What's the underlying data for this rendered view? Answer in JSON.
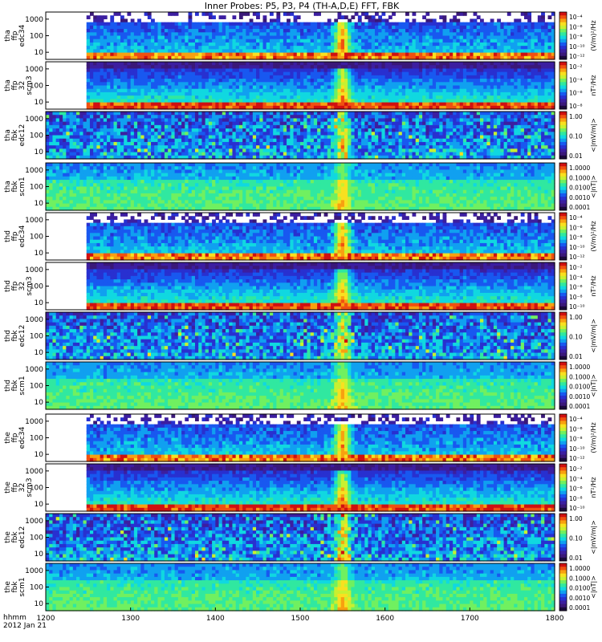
{
  "chart_data": {
    "type": "heatmap",
    "title": "Inner Probes: P5, P3, P4 (TH-A,D,E) FFT, FBK",
    "x_axis": {
      "label_time": "hhmm",
      "label_date": "2012 Jan 21",
      "range": [
        1200,
        1800
      ],
      "ticks": [
        "1200",
        "1300",
        "1400",
        "1500",
        "1600",
        "1700",
        "1800"
      ]
    },
    "panels": [
      {
        "name": "tha-ffp-edc34",
        "ylabel": [
          "tha",
          "ffp",
          "edc34"
        ],
        "yticks": [
          "1000",
          "100",
          "10"
        ],
        "cbar_label": "(V/m)²/Hz",
        "cbar_ticks": [
          "10⁻⁴",
          "10⁻⁶",
          "10⁻⁸",
          "10⁻¹⁰",
          "10⁻¹²"
        ],
        "kind": "e_fft"
      },
      {
        "name": "tha-ffp-32-scm3",
        "ylabel": [
          "tha",
          "ffp",
          "32",
          "scm3"
        ],
        "yticks": [
          "1000",
          "100",
          "10"
        ],
        "cbar_label": "nT²/Hz",
        "cbar_ticks": [
          "10⁻²",
          "10⁻⁴",
          "10⁻⁶",
          "10⁻⁸"
        ],
        "kind": "b_fft"
      },
      {
        "name": "tha-fbk-edc12",
        "ylabel": [
          "tha",
          "fbk",
          "edc12"
        ],
        "yticks": [
          "1000",
          "100",
          "10"
        ],
        "cbar_label": "<|mV/m|>",
        "cbar_ticks": [
          "1.00",
          "0.10",
          "0.01"
        ],
        "kind": "e_fbk"
      },
      {
        "name": "tha-fbk-scm1",
        "ylabel": [
          "tha",
          "fbk",
          "scm1"
        ],
        "yticks": [
          "1000",
          "100",
          "10"
        ],
        "cbar_label": "<|nT|>",
        "cbar_ticks": [
          "1.0000",
          "0.1000",
          "0.0100",
          "0.0010",
          "0.0001"
        ],
        "kind": "b_fbk"
      },
      {
        "name": "thd-ffp-edc34",
        "ylabel": [
          "thd",
          "ffp",
          "edc34"
        ],
        "yticks": [
          "1000",
          "100",
          "10"
        ],
        "cbar_label": "(V/m)²/Hz",
        "cbar_ticks": [
          "10⁻⁴",
          "10⁻⁶",
          "10⁻⁸",
          "10⁻¹⁰",
          "10⁻¹²"
        ],
        "kind": "e_fft"
      },
      {
        "name": "thd-ffp-32-scm3",
        "ylabel": [
          "thd",
          "ffp",
          "32",
          "scm3"
        ],
        "yticks": [
          "1000",
          "100",
          "10"
        ],
        "cbar_label": "nT²/Hz",
        "cbar_ticks": [
          "10⁻²",
          "10⁻⁴",
          "10⁻⁶",
          "10⁻⁸",
          "10⁻¹⁰"
        ],
        "kind": "b_fft"
      },
      {
        "name": "thd-fbk-edc12",
        "ylabel": [
          "thd",
          "fbk",
          "edc12"
        ],
        "yticks": [
          "1000",
          "100",
          "10"
        ],
        "cbar_label": "<|mV/m|>",
        "cbar_ticks": [
          "1.00",
          "0.10",
          "0.01"
        ],
        "kind": "e_fbk"
      },
      {
        "name": "thd-fbk-scm1",
        "ylabel": [
          "thd",
          "fbk",
          "scm1"
        ],
        "yticks": [
          "1000",
          "100",
          "10"
        ],
        "cbar_label": "<|nT|>",
        "cbar_ticks": [
          "1.0000",
          "0.1000",
          "0.0100",
          "0.0010",
          "0.0001"
        ],
        "kind": "b_fbk"
      },
      {
        "name": "the-ffp-edc34",
        "ylabel": [
          "the",
          "ffp",
          "edc34"
        ],
        "yticks": [
          "1000",
          "100",
          "10"
        ],
        "cbar_label": "(V/m)²/Hz",
        "cbar_ticks": [
          "10⁻⁴",
          "10⁻⁶",
          "10⁻⁸",
          "10⁻¹⁰",
          "10⁻¹²"
        ],
        "kind": "e_fft"
      },
      {
        "name": "the-ffp-32-scm3",
        "ylabel": [
          "the",
          "ffp",
          "32",
          "scm3"
        ],
        "yticks": [
          "1000",
          "100",
          "10"
        ],
        "cbar_label": "nT²/Hz",
        "cbar_ticks": [
          "10⁻²",
          "10⁻⁴",
          "10⁻⁶",
          "10⁻⁸",
          "10⁻¹⁰"
        ],
        "kind": "b_fft"
      },
      {
        "name": "the-fbk-edc12",
        "ylabel": [
          "the",
          "fbk",
          "edc12"
        ],
        "yticks": [
          "1000",
          "100",
          "10"
        ],
        "cbar_label": "<|mV/m|>",
        "cbar_ticks": [
          "1.00",
          "0.10",
          "0.01"
        ],
        "kind": "e_fbk"
      },
      {
        "name": "the-fbk-scm1",
        "ylabel": [
          "the",
          "fbk",
          "scm1"
        ],
        "yticks": [
          "1000",
          "100",
          "10"
        ],
        "cbar_label": "<|nT|>",
        "cbar_ticks": [
          "1.0000",
          "0.1000",
          "0.0100",
          "0.0010",
          "0.0001"
        ],
        "kind": "b_fbk"
      }
    ],
    "ffp_data_start": 1245,
    "event_time": 1550,
    "colors": {
      "palette": [
        "#1a0a3a",
        "#3a1878",
        "#3c1ea0",
        "#2830d0",
        "#1858f0",
        "#10a0f0",
        "#10d8e0",
        "#30e8a0",
        "#70f060",
        "#c8f030",
        "#f8e020",
        "#f8a010",
        "#f05010",
        "#d01010"
      ],
      "frame": "#000000",
      "background": "#ffffff"
    }
  }
}
